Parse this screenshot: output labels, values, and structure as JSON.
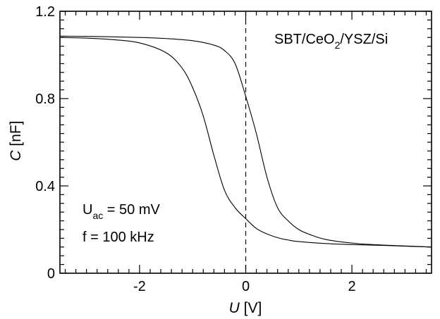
{
  "chart_data": {
    "type": "line",
    "title": "",
    "xlabel": {
      "symbol": "U",
      "unit": " [V]"
    },
    "ylabel": {
      "symbol": "C",
      "unit": " [nF]"
    },
    "xlim": [
      -3.5,
      3.5
    ],
    "ylim": [
      0,
      1.2
    ],
    "x_ticks": [
      -2,
      0,
      2
    ],
    "x_tick_labels": [
      "-2",
      "0",
      "2"
    ],
    "y_ticks": [
      0,
      0.4,
      0.8,
      1.2
    ],
    "y_tick_labels": [
      "0",
      "0.4",
      "0.8",
      "1.2"
    ],
    "grid": false,
    "vertical_reference_line_x": 0,
    "annotations": {
      "sample": {
        "base": "SBT/CeO",
        "sub": "2",
        "rest": "/YSZ/Si"
      },
      "uac": {
        "base": "U",
        "sub": "ac",
        "rest": " = 50 mV"
      },
      "freq": "f = 100 kHz"
    },
    "series": [
      {
        "x": [
          -3.5,
          -3.0,
          -2.5,
          -2.0,
          -1.5,
          -1.2,
          -1.0,
          -0.8,
          -0.6,
          -0.4,
          -0.2,
          0.0,
          0.2,
          0.4,
          0.6,
          0.8,
          1.0,
          1.5,
          2.0,
          2.5,
          3.0,
          3.5
        ],
        "values": [
          1.08,
          1.077,
          1.07,
          1.055,
          1.01,
          0.94,
          0.85,
          0.72,
          0.54,
          0.38,
          0.3,
          0.25,
          0.205,
          0.18,
          0.163,
          0.152,
          0.145,
          0.136,
          0.131,
          0.128,
          0.124,
          0.12
        ]
      },
      {
        "x": [
          -3.5,
          -3.0,
          -2.5,
          -2.0,
          -1.5,
          -1.0,
          -0.6,
          -0.4,
          -0.2,
          0.0,
          0.2,
          0.4,
          0.6,
          0.8,
          1.0,
          1.2,
          1.5,
          2.0,
          2.5,
          3.0,
          3.5
        ],
        "values": [
          1.086,
          1.085,
          1.083,
          1.08,
          1.075,
          1.065,
          1.045,
          1.02,
          0.96,
          0.81,
          0.64,
          0.44,
          0.3,
          0.24,
          0.2,
          0.178,
          0.155,
          0.138,
          0.13,
          0.125,
          0.12
        ]
      }
    ]
  }
}
